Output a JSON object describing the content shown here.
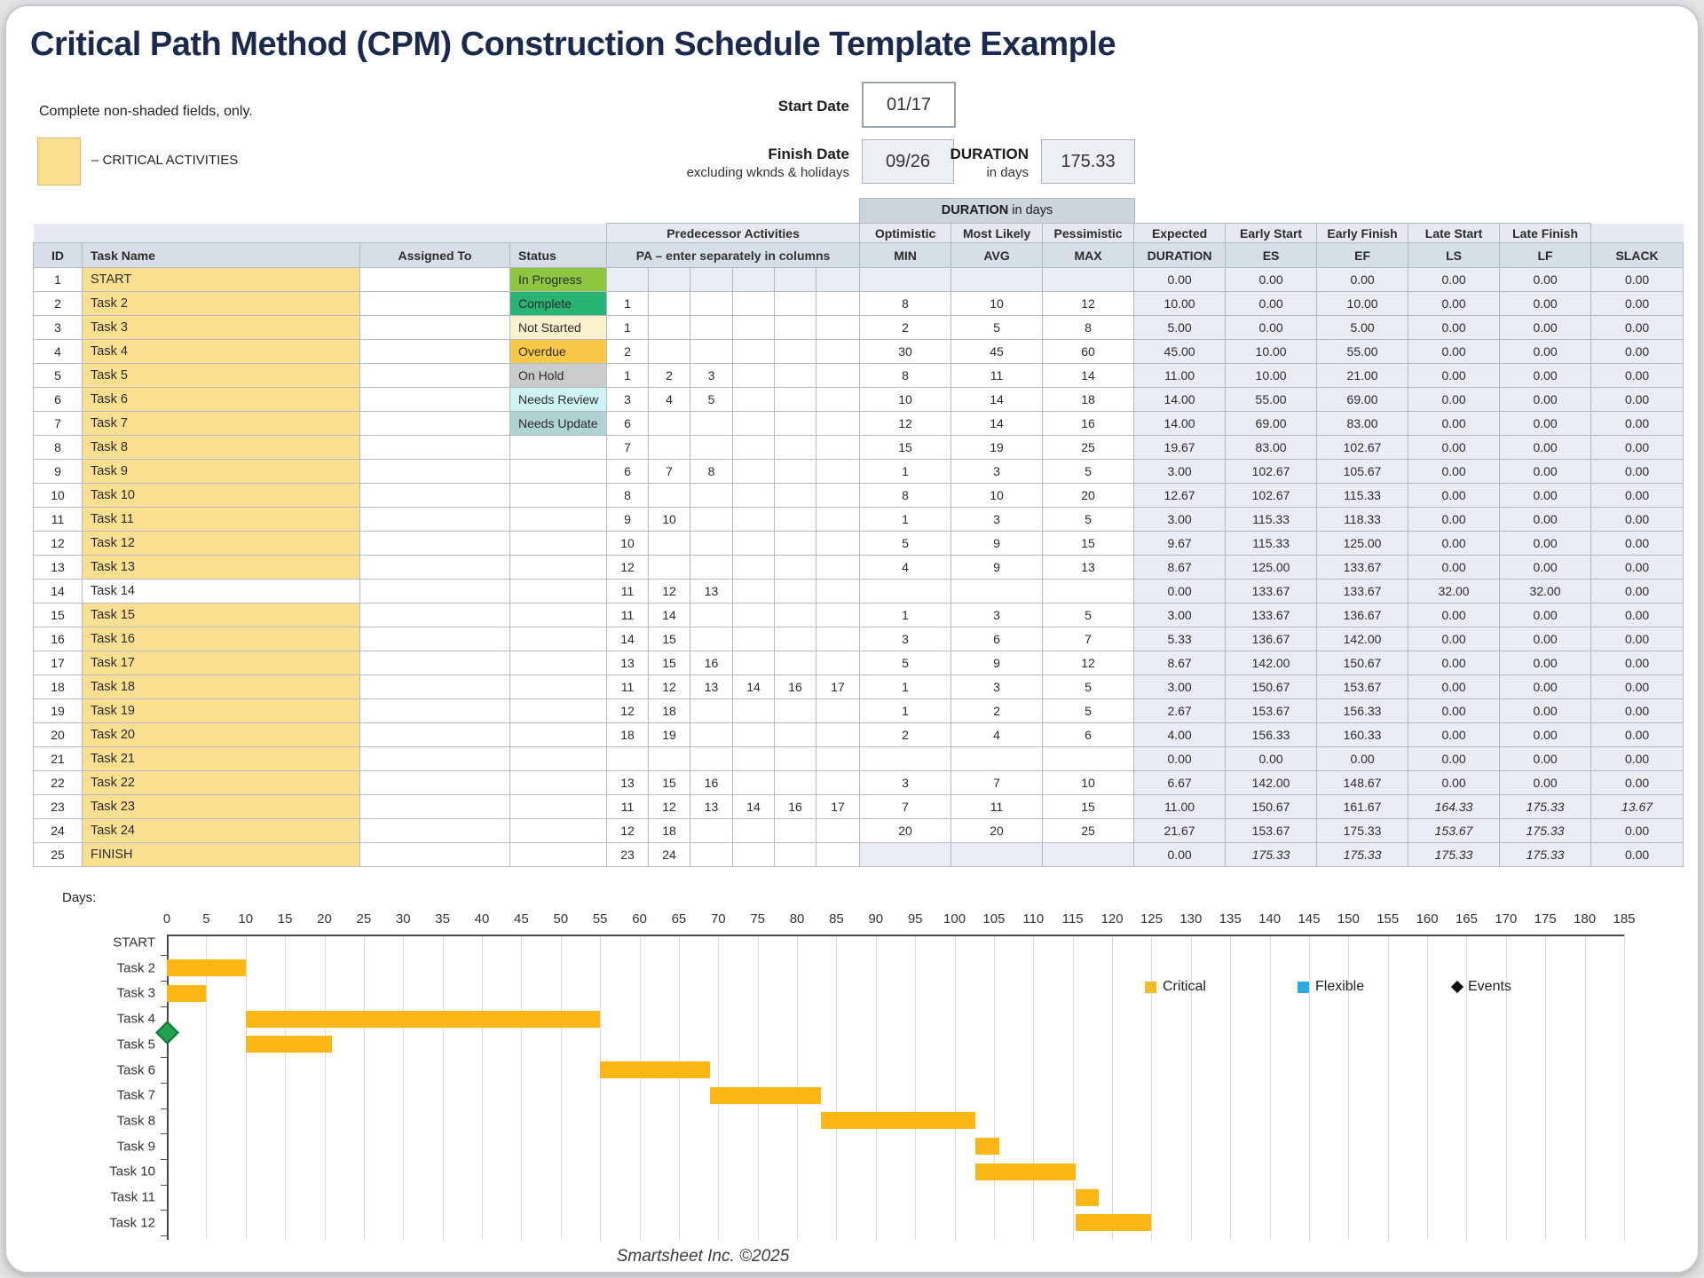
{
  "page": {
    "title": "Critical Path Method (CPM) Construction Schedule Template Example",
    "note": "Complete non-shaded fields, only.",
    "critical_legend": "– CRITICAL ACTIVITIES",
    "footer": "Smartsheet Inc. ©2025"
  },
  "summary": {
    "start_date_label": "Start Date",
    "start_date": "01/17",
    "finish_date_label": "Finish Date",
    "finish_date_sub": "excluding wknds & holidays",
    "finish_date": "09/26",
    "duration_label": "DURATION",
    "duration_sub": "in days",
    "duration_value": "175.33",
    "duration_group_bold": "DURATION",
    "duration_group_rest": " in days"
  },
  "table": {
    "headers": {
      "id": "ID",
      "task_name": "Task Name",
      "assigned_to": "Assigned To",
      "status": "Status",
      "pred_activities": "Predecessor Activities",
      "pa_note": "PA  –  enter separately in columns",
      "optimistic": "Optimistic",
      "most_likely": "Most Likely",
      "pessimistic": "Pessimistic",
      "expected": "Expected",
      "early_start": "Early Start",
      "early_finish": "Early Finish",
      "late_start": "Late Start",
      "late_finish": "Late Finish",
      "min": "MIN",
      "avg": "AVG",
      "max": "MAX",
      "duration": "DURATION",
      "es": "ES",
      "ef": "EF",
      "ls": "LS",
      "lf": "LF",
      "slack": "SLACK"
    },
    "status_styles": {
      "in_progress": {
        "label": "In Progress",
        "bg": "#8dc63f"
      },
      "complete": {
        "label": "Complete",
        "bg": "#29b473"
      },
      "not_started": {
        "label": "Not Started",
        "bg": "#fcf1cd"
      },
      "overdue": {
        "label": "Overdue",
        "bg": "#f9c846"
      },
      "on_hold": {
        "label": "On Hold",
        "bg": "#cbcbcb"
      },
      "needs_review": {
        "label": "Needs Review",
        "bg": "#cdf4f0"
      },
      "needs_update": {
        "label": "Needs Update",
        "bg": "#afd3d2"
      }
    },
    "critical_color": "#fbdf90",
    "rows": [
      {
        "id": 1,
        "name": "START",
        "critical": true,
        "status": "in_progress",
        "preds": [],
        "min": "",
        "avg": "",
        "max": "",
        "dur": "0.00",
        "es": "0.00",
        "ef": "0.00",
        "ls": "0.00",
        "lf": "0.00",
        "slack": "0.00",
        "shade_pred": true,
        "shade_mam": true
      },
      {
        "id": 2,
        "name": "Task 2",
        "critical": true,
        "status": "complete",
        "preds": [
          "1"
        ],
        "min": "8",
        "avg": "10",
        "max": "12",
        "dur": "10.00",
        "es": "0.00",
        "ef": "10.00",
        "ls": "0.00",
        "lf": "0.00",
        "slack": "0.00"
      },
      {
        "id": 3,
        "name": "Task 3",
        "critical": true,
        "status": "not_started",
        "preds": [
          "1"
        ],
        "min": "2",
        "avg": "5",
        "max": "8",
        "dur": "5.00",
        "es": "0.00",
        "ef": "5.00",
        "ls": "0.00",
        "lf": "0.00",
        "slack": "0.00"
      },
      {
        "id": 4,
        "name": "Task 4",
        "critical": true,
        "status": "overdue",
        "preds": [
          "2"
        ],
        "min": "30",
        "avg": "45",
        "max": "60",
        "dur": "45.00",
        "es": "10.00",
        "ef": "55.00",
        "ls": "0.00",
        "lf": "0.00",
        "slack": "0.00"
      },
      {
        "id": 5,
        "name": "Task 5",
        "critical": true,
        "status": "on_hold",
        "preds": [
          "1",
          "2",
          "3"
        ],
        "min": "8",
        "avg": "11",
        "max": "14",
        "dur": "11.00",
        "es": "10.00",
        "ef": "21.00",
        "ls": "0.00",
        "lf": "0.00",
        "slack": "0.00"
      },
      {
        "id": 6,
        "name": "Task 6",
        "critical": true,
        "status": "needs_review",
        "preds": [
          "3",
          "4",
          "5"
        ],
        "min": "10",
        "avg": "14",
        "max": "18",
        "dur": "14.00",
        "es": "55.00",
        "ef": "69.00",
        "ls": "0.00",
        "lf": "0.00",
        "slack": "0.00"
      },
      {
        "id": 7,
        "name": "Task 7",
        "critical": true,
        "status": "needs_update",
        "preds": [
          "6"
        ],
        "min": "12",
        "avg": "14",
        "max": "16",
        "dur": "14.00",
        "es": "69.00",
        "ef": "83.00",
        "ls": "0.00",
        "lf": "0.00",
        "slack": "0.00"
      },
      {
        "id": 8,
        "name": "Task 8",
        "critical": true,
        "status": "",
        "preds": [
          "7"
        ],
        "min": "15",
        "avg": "19",
        "max": "25",
        "dur": "19.67",
        "es": "83.00",
        "ef": "102.67",
        "ls": "0.00",
        "lf": "0.00",
        "slack": "0.00"
      },
      {
        "id": 9,
        "name": "Task 9",
        "critical": true,
        "status": "",
        "preds": [
          "6",
          "7",
          "8"
        ],
        "min": "1",
        "avg": "3",
        "max": "5",
        "dur": "3.00",
        "es": "102.67",
        "ef": "105.67",
        "ls": "0.00",
        "lf": "0.00",
        "slack": "0.00"
      },
      {
        "id": 10,
        "name": "Task 10",
        "critical": true,
        "status": "",
        "preds": [
          "8"
        ],
        "min": "8",
        "avg": "10",
        "max": "20",
        "dur": "12.67",
        "es": "102.67",
        "ef": "115.33",
        "ls": "0.00",
        "lf": "0.00",
        "slack": "0.00"
      },
      {
        "id": 11,
        "name": "Task 11",
        "critical": true,
        "status": "",
        "preds": [
          "9",
          "10"
        ],
        "min": "1",
        "avg": "3",
        "max": "5",
        "dur": "3.00",
        "es": "115.33",
        "ef": "118.33",
        "ls": "0.00",
        "lf": "0.00",
        "slack": "0.00"
      },
      {
        "id": 12,
        "name": "Task 12",
        "critical": true,
        "status": "",
        "preds": [
          "10"
        ],
        "min": "5",
        "avg": "9",
        "max": "15",
        "dur": "9.67",
        "es": "115.33",
        "ef": "125.00",
        "ls": "0.00",
        "lf": "0.00",
        "slack": "0.00"
      },
      {
        "id": 13,
        "name": "Task 13",
        "critical": true,
        "status": "",
        "preds": [
          "12"
        ],
        "min": "4",
        "avg": "9",
        "max": "13",
        "dur": "8.67",
        "es": "125.00",
        "ef": "133.67",
        "ls": "0.00",
        "lf": "0.00",
        "slack": "0.00"
      },
      {
        "id": 14,
        "name": "Task 14",
        "critical": false,
        "status": "",
        "preds": [
          "11",
          "12",
          "13"
        ],
        "min": "",
        "avg": "",
        "max": "",
        "dur": "0.00",
        "es": "133.67",
        "ef": "133.67",
        "ls": "32.00",
        "lf": "32.00",
        "slack": "0.00"
      },
      {
        "id": 15,
        "name": "Task 15",
        "critical": true,
        "status": "",
        "preds": [
          "11",
          "14"
        ],
        "min": "1",
        "avg": "3",
        "max": "5",
        "dur": "3.00",
        "es": "133.67",
        "ef": "136.67",
        "ls": "0.00",
        "lf": "0.00",
        "slack": "0.00"
      },
      {
        "id": 16,
        "name": "Task 16",
        "critical": true,
        "status": "",
        "preds": [
          "14",
          "15"
        ],
        "min": "3",
        "avg": "6",
        "max": "7",
        "dur": "5.33",
        "es": "136.67",
        "ef": "142.00",
        "ls": "0.00",
        "lf": "0.00",
        "slack": "0.00"
      },
      {
        "id": 17,
        "name": "Task 17",
        "critical": true,
        "status": "",
        "preds": [
          "13",
          "15",
          "16"
        ],
        "min": "5",
        "avg": "9",
        "max": "12",
        "dur": "8.67",
        "es": "142.00",
        "ef": "150.67",
        "ls": "0.00",
        "lf": "0.00",
        "slack": "0.00"
      },
      {
        "id": 18,
        "name": "Task 18",
        "critical": true,
        "status": "",
        "preds": [
          "11",
          "12",
          "13",
          "14",
          "16",
          "17"
        ],
        "min": "1",
        "avg": "3",
        "max": "5",
        "dur": "3.00",
        "es": "150.67",
        "ef": "153.67",
        "ls": "0.00",
        "lf": "0.00",
        "slack": "0.00"
      },
      {
        "id": 19,
        "name": "Task 19",
        "critical": true,
        "status": "",
        "preds": [
          "12",
          "18"
        ],
        "min": "1",
        "avg": "2",
        "max": "5",
        "dur": "2.67",
        "es": "153.67",
        "ef": "156.33",
        "ls": "0.00",
        "lf": "0.00",
        "slack": "0.00"
      },
      {
        "id": 20,
        "name": "Task 20",
        "critical": true,
        "status": "",
        "preds": [
          "18",
          "19"
        ],
        "min": "2",
        "avg": "4",
        "max": "6",
        "dur": "4.00",
        "es": "156.33",
        "ef": "160.33",
        "ls": "0.00",
        "lf": "0.00",
        "slack": "0.00"
      },
      {
        "id": 21,
        "name": "Task 21",
        "critical": true,
        "status": "",
        "preds": [],
        "min": "",
        "avg": "",
        "max": "",
        "dur": "0.00",
        "es": "0.00",
        "ef": "0.00",
        "ls": "0.00",
        "lf": "0.00",
        "slack": "0.00"
      },
      {
        "id": 22,
        "name": "Task 22",
        "critical": true,
        "status": "",
        "preds": [
          "13",
          "15",
          "16"
        ],
        "min": "3",
        "avg": "7",
        "max": "10",
        "dur": "6.67",
        "es": "142.00",
        "ef": "148.67",
        "ls": "0.00",
        "lf": "0.00",
        "slack": "0.00"
      },
      {
        "id": 23,
        "name": "Task 23",
        "critical": true,
        "status": "",
        "preds": [
          "11",
          "12",
          "13",
          "14",
          "16",
          "17"
        ],
        "min": "7",
        "avg": "11",
        "max": "15",
        "dur": "11.00",
        "es": "150.67",
        "ef": "161.67",
        "ls": "164.33",
        "lf": "175.33",
        "slack": "13.67",
        "italics": [
          "ls",
          "lf",
          "slack"
        ]
      },
      {
        "id": 24,
        "name": "Task 24",
        "critical": true,
        "status": "",
        "preds": [
          "12",
          "18"
        ],
        "min": "20",
        "avg": "20",
        "max": "25",
        "dur": "21.67",
        "es": "153.67",
        "ef": "175.33",
        "ls": "153.67",
        "lf": "175.33",
        "slack": "0.00",
        "italics": [
          "ls",
          "lf"
        ]
      },
      {
        "id": 25,
        "name": "FINISH",
        "critical": true,
        "status": "",
        "preds": [
          "23",
          "24"
        ],
        "min": "",
        "avg": "",
        "max": "",
        "dur": "0.00",
        "es": "175.33",
        "ef": "175.33",
        "ls": "175.33",
        "lf": "175.33",
        "slack": "0.00",
        "shade_mam": true,
        "italics": [
          "es",
          "ef",
          "ls",
          "lf"
        ]
      }
    ]
  },
  "gantt": {
    "type": "gantt-bar",
    "days_label": "Days:",
    "axis": {
      "min": 0,
      "max": 185,
      "step": 5
    },
    "bar_color": "#fdb714",
    "rows": [
      {
        "label": "START",
        "start": 0,
        "end": 0
      },
      {
        "label": "Task 2",
        "start": 0,
        "end": 10
      },
      {
        "label": "Task 3",
        "start": 0,
        "end": 5
      },
      {
        "label": "Task 4",
        "start": 10,
        "end": 55
      },
      {
        "label": "Task 5",
        "start": 10,
        "end": 21
      },
      {
        "label": "Task 6",
        "start": 55,
        "end": 69
      },
      {
        "label": "Task 7",
        "start": 69,
        "end": 83
      },
      {
        "label": "Task 8",
        "start": 83,
        "end": 102.67
      },
      {
        "label": "Task 9",
        "start": 102.67,
        "end": 105.67
      },
      {
        "label": "Task 10",
        "start": 102.67,
        "end": 115.33
      },
      {
        "label": "Task 11",
        "start": 115.33,
        "end": 118.33
      },
      {
        "label": "Task 12",
        "start": 115.33,
        "end": 125
      }
    ],
    "event_marker": {
      "day": 0,
      "between_rows": [
        "Task 4",
        "Task 5"
      ],
      "color": "#1fa34f"
    },
    "legend": [
      {
        "label": "Critical",
        "shape": "square",
        "color": "#f2bb28"
      },
      {
        "label": "Flexible",
        "shape": "square",
        "color": "#29abe2"
      },
      {
        "label": "Events",
        "shape": "diamond",
        "color": "#111111"
      }
    ]
  }
}
